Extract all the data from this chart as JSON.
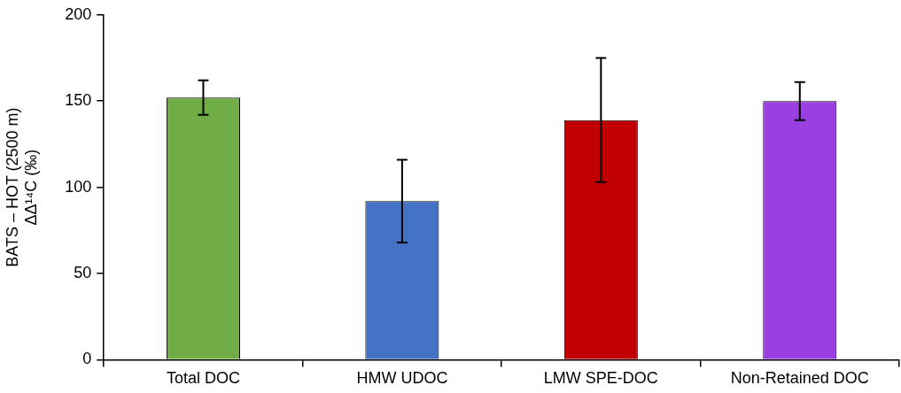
{
  "chart_data": {
    "type": "bar",
    "ylabel": "BATS – HOT (2500 m)\nΔΔ¹⁴C (‰)",
    "categories": [
      "Total DOC",
      "HMW UDOC",
      "LMW SPE-DOC",
      "Non-Retained DOC"
    ],
    "values": [
      152,
      92,
      139,
      150
    ],
    "colors": [
      "#70ad47",
      "#4472c4",
      "#c00000",
      "#9b40e0"
    ],
    "errors": [
      10,
      24,
      36,
      11
    ],
    "ylim": [
      0,
      200
    ],
    "yticks": [
      0,
      50,
      100,
      150,
      200
    ],
    "grid": false,
    "legend": false
  }
}
